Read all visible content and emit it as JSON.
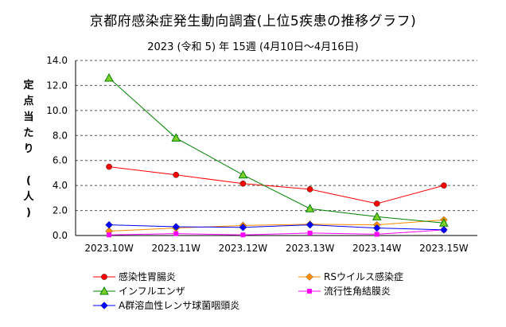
{
  "chart_data": {
    "type": "line",
    "title": "京都府感染症発生動向調査(上位5疾患の推移グラフ)",
    "subtitle": "2023 (令和 5) 年  15週 (4月10日～4月16日)",
    "ylabel": "定点当たり (人)",
    "ylim": [
      0,
      14
    ],
    "ytick_labels": [
      "0.0",
      "2.0",
      "4.0",
      "6.0",
      "8.0",
      "10.0",
      "12.0",
      "14.0"
    ],
    "categories": [
      "2023.10W",
      "2023.11W",
      "2023.12W",
      "2023.13W",
      "2023.14W",
      "2023.15W"
    ],
    "grid": "horizontal dashed",
    "legend_position": "bottom",
    "series": [
      {
        "name": "感染性胃腸炎",
        "color": "#ff0000",
        "marker": "circle",
        "values": [
          5.5,
          4.85,
          4.15,
          3.7,
          2.55,
          4.0
        ]
      },
      {
        "name": "RSウイルス感染症",
        "color": "#ff8c00",
        "marker": "diamond",
        "values": [
          0.35,
          0.6,
          0.8,
          0.9,
          0.85,
          1.25
        ]
      },
      {
        "name": "インフルエンザ",
        "color": "#008000",
        "marker": "triangle",
        "values": [
          12.6,
          7.8,
          4.85,
          2.15,
          1.5,
          1.0
        ]
      },
      {
        "name": "流行性角結膜炎",
        "color": "#ff00ff",
        "marker": "square",
        "values": [
          0.05,
          0.15,
          0.05,
          0.2,
          0.1,
          0.45
        ]
      },
      {
        "name": "A群溶血性レンサ球菌咽頭炎",
        "color": "#0000ff",
        "marker": "diamond",
        "values": [
          0.85,
          0.7,
          0.65,
          0.85,
          0.6,
          0.45
        ]
      }
    ]
  }
}
